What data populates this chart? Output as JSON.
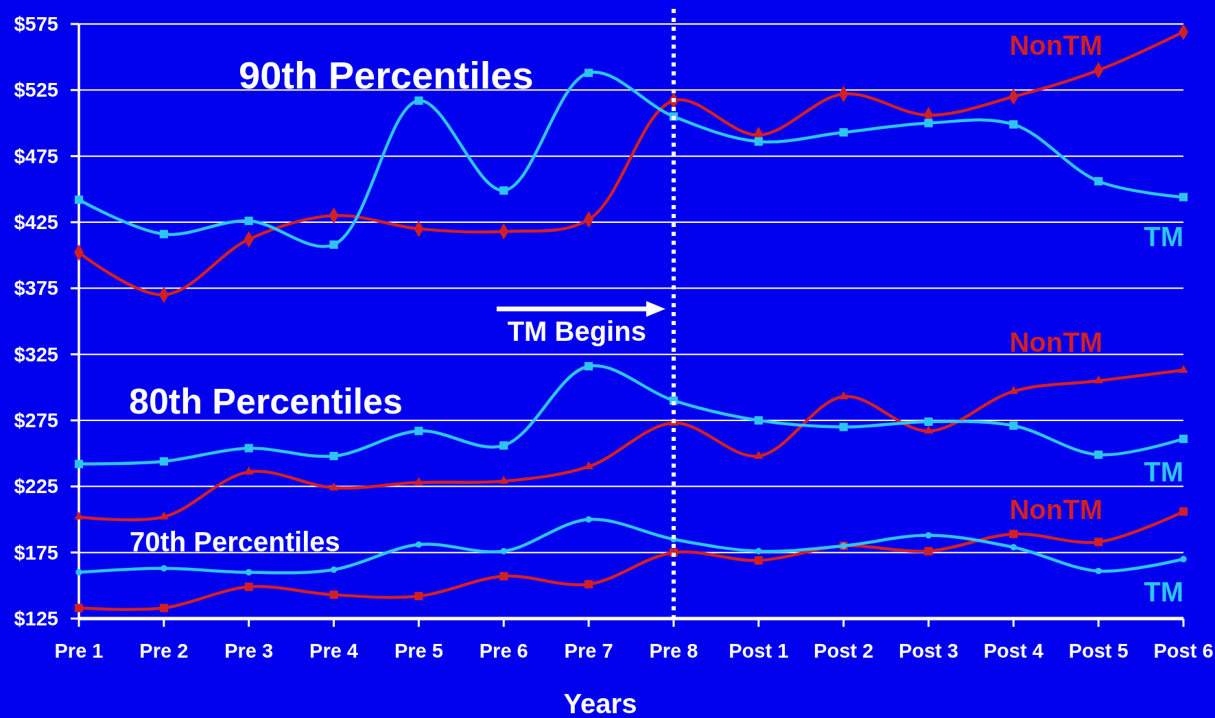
{
  "chart_data": {
    "type": "line",
    "categories": [
      "Pre 1",
      "Pre 2",
      "Pre 3",
      "Pre 4",
      "Pre 5",
      "Pre 6",
      "Pre 7",
      "Pre 8",
      "Post 1",
      "Post 2",
      "Post 3",
      "Post 4",
      "Post 5",
      "Post 6"
    ],
    "series": [
      {
        "name": "NonTM",
        "color": "#d11f26",
        "marker": "diamond",
        "values": [
          402,
          370,
          412,
          430,
          420,
          418,
          427,
          517,
          491,
          522,
          506,
          520,
          540,
          569
        ]
      },
      {
        "name": "TM",
        "color": "#2ec3f5",
        "marker": "square",
        "values": [
          442,
          416,
          426,
          408,
          517,
          449,
          538,
          505,
          486,
          493,
          500,
          499,
          456,
          444
        ]
      },
      {
        "name": "NonTM",
        "color": "#d11f26",
        "marker": "triangle",
        "values": [
          202,
          202,
          236,
          224,
          228,
          229,
          240,
          273,
          248,
          293,
          267,
          297,
          305,
          313
        ]
      },
      {
        "name": "TM",
        "color": "#2ec3f5",
        "marker": "square",
        "values": [
          242,
          244,
          254,
          248,
          267,
          256,
          316,
          290,
          275,
          270,
          274,
          271,
          249,
          261
        ]
      },
      {
        "name": "NonTM",
        "color": "#d11f26",
        "marker": "square",
        "values": [
          133,
          133,
          149,
          143,
          142,
          157,
          151,
          175,
          169,
          180,
          176,
          189,
          183,
          206
        ]
      },
      {
        "name": "TM",
        "color": "#2ec3f5",
        "marker": "circle",
        "values": [
          160,
          163,
          160,
          162,
          181,
          176,
          200,
          185,
          176,
          180,
          188,
          179,
          161,
          170
        ]
      }
    ],
    "xlabel": "Years",
    "ylim": [
      125,
      575
    ],
    "yticks": [
      {
        "value": 125,
        "label": "$125"
      },
      {
        "value": 175,
        "label": "$175"
      },
      {
        "value": 225,
        "label": "$225"
      },
      {
        "value": 275,
        "label": "$275"
      },
      {
        "value": 325,
        "label": "$325"
      },
      {
        "value": 375,
        "label": "$375"
      },
      {
        "value": 425,
        "label": "$425"
      },
      {
        "value": 475,
        "label": "$475"
      },
      {
        "value": 525,
        "label": "$525"
      },
      {
        "value": 575,
        "label": "$575"
      }
    ],
    "grid": "y",
    "line_style": "solid",
    "ref_lines": [
      {
        "axis": "x",
        "value": "Pre 8",
        "label": "TM Begins",
        "color": "#ffffff",
        "line_style": "dotted"
      }
    ],
    "annotations": [
      "90th Percentiles",
      "80th Percentiles",
      "70th Percentiles"
    ]
  }
}
